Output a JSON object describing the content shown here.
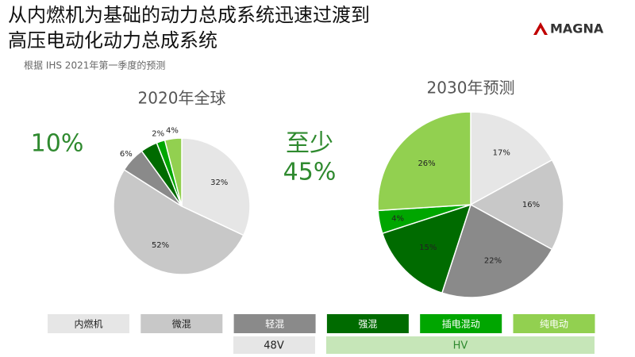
{
  "header": {
    "title_lines": [
      "从内燃机为基础的动力总成系统迅速过渡到",
      "高压电动化动力总成系统"
    ],
    "subtitle": "根据 IHS 2021年第一季度的预测"
  },
  "logo": "MAGNA",
  "callouts": [
    "10%",
    "至少",
    "45%"
  ],
  "chart_data": [
    {
      "type": "pie",
      "title": "2020年全球",
      "categories": [
        "内燃机",
        "微混",
        "轻混",
        "强混",
        "插电混动",
        "纯电动"
      ],
      "values": [
        32,
        52,
        6,
        4,
        2,
        4
      ],
      "value_labels": [
        "32%",
        "52%",
        "6%",
        null,
        "2%",
        "4%"
      ],
      "colors": [
        "#e6e6e6",
        "#c8c8c8",
        "#8a8a8a",
        "#006b00",
        "#00a600",
        "#92d050"
      ]
    },
    {
      "type": "pie",
      "title": "2030年预测",
      "categories": [
        "内燃机",
        "微混",
        "轻混",
        "强混",
        "插电混动",
        "纯电动"
      ],
      "values": [
        17,
        16,
        22,
        15,
        4,
        26
      ],
      "value_labels": [
        "17%",
        "16%",
        "22%",
        "15%",
        "4%",
        "26%"
      ],
      "colors": [
        "#e6e6e6",
        "#c8c8c8",
        "#8a8a8a",
        "#006b00",
        "#00a600",
        "#92d050"
      ]
    }
  ],
  "legend_groups": [
    "48V",
    "HV"
  ]
}
